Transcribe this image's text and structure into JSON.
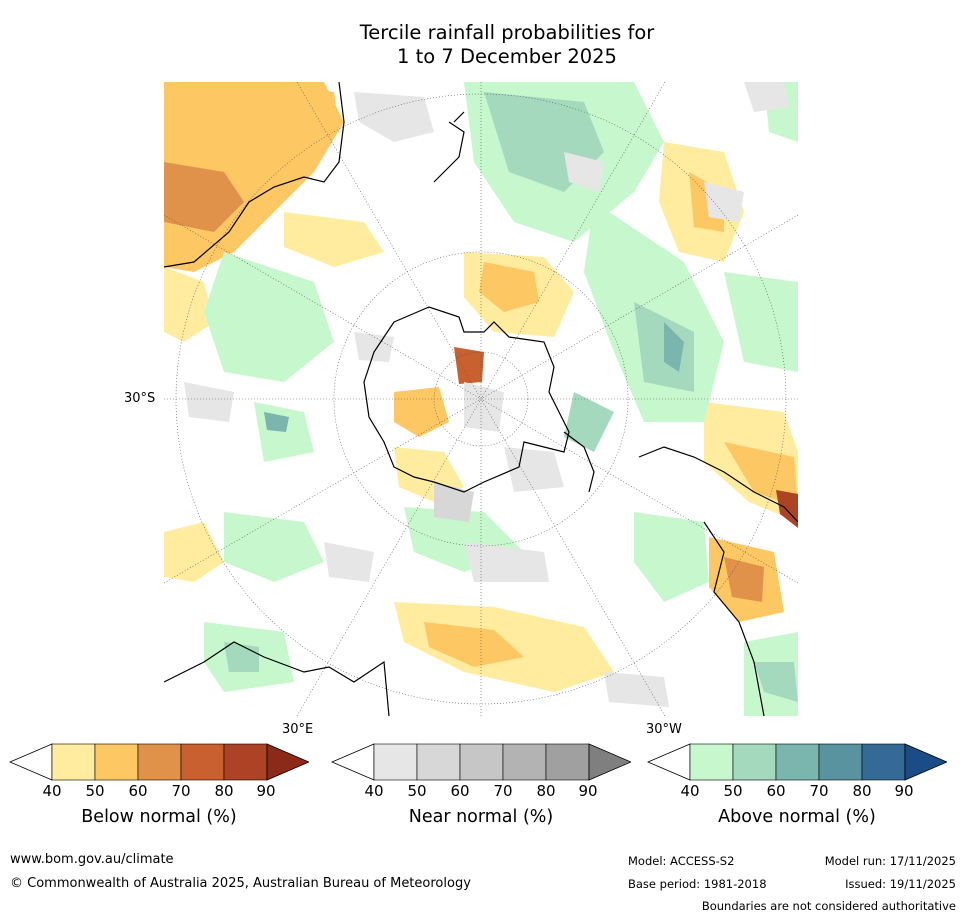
{
  "title_line1": "Tercile rainfall probabilities for",
  "title_line2": "1 to 7 December 2025",
  "map": {
    "lat_label": "30°S",
    "lon_label_east": "30°E",
    "lon_label_west": "30°W"
  },
  "colorbars": [
    {
      "id": "below",
      "label": "Below normal (%)",
      "ticks": [
        "40",
        "50",
        "60",
        "70",
        "80",
        "90"
      ],
      "colors": [
        "#ffffff",
        "#ffec9e",
        "#fdc763",
        "#e0924a",
        "#c8602f",
        "#ad4325",
        "#8b2a18"
      ]
    },
    {
      "id": "near",
      "label": "Near normal (%)",
      "ticks": [
        "40",
        "50",
        "60",
        "70",
        "80",
        "90"
      ],
      "colors": [
        "#ffffff",
        "#e6e6e6",
        "#d7d7d7",
        "#c6c6c6",
        "#b3b3b3",
        "#a0a0a0",
        "#7f7f7f"
      ]
    },
    {
      "id": "above",
      "label": "Above normal (%)",
      "ticks": [
        "40",
        "50",
        "60",
        "70",
        "80",
        "90"
      ],
      "colors": [
        "#ffffff",
        "#c7f7cc",
        "#a5d9bd",
        "#7ab5ae",
        "#5a93a0",
        "#356996",
        "#1c4c85"
      ]
    }
  ],
  "footer": {
    "website": "www.bom.gov.au/climate",
    "copyright": "© Commonwealth of Australia 2025, Australian Bureau of Meteorology",
    "model": "Model: ACCESS-S2",
    "base_period": "Base period: 1981-2018",
    "model_run": "Model run: 17/11/2025",
    "issued": "Issued: 19/11/2025",
    "boundaries": "Boundaries are not considered authoritative"
  }
}
